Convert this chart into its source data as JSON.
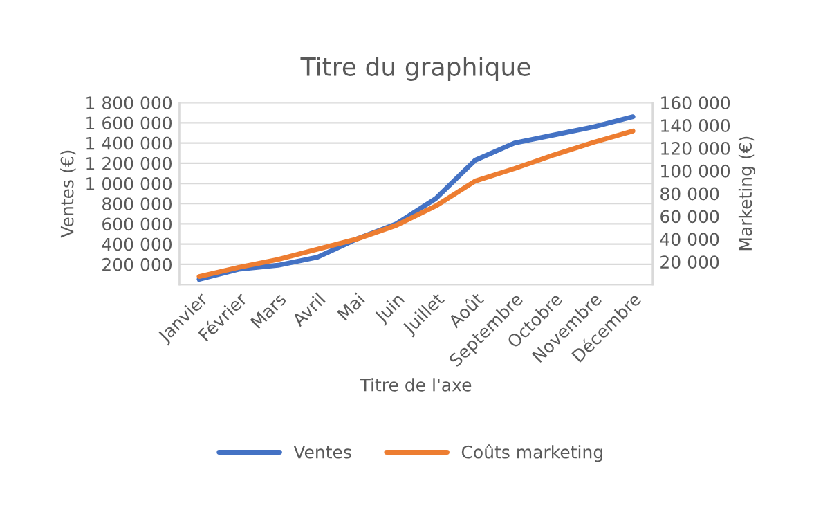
{
  "chart_data": {
    "type": "line",
    "title": "Titre du graphique",
    "xlabel": "Titre de l'axe",
    "ylabel": "Ventes (€)",
    "y2label": "Marketing (€)",
    "categories": [
      "Janvier",
      "Février",
      "Mars",
      "Avril",
      "Mai",
      "Juin",
      "Juillet",
      "Août",
      "Septembre",
      "Octobre",
      "Novembre",
      "Décembre"
    ],
    "series": [
      {
        "name": "Ventes",
        "color": "#4472c4",
        "values": [
          50000,
          150000,
          190000,
          270000,
          450000,
          600000,
          850000,
          1230000,
          1400000,
          1480000,
          1560000,
          1660000
        ]
      },
      {
        "name": "Coûts marketing",
        "color": "#ed7d31",
        "axis": "y2",
        "values": [
          7000,
          15000,
          22000,
          31000,
          40000,
          52000,
          69000,
          91000,
          102000,
          114000,
          125000,
          135000
        ]
      }
    ],
    "ylim": [
      0,
      1800000
    ],
    "yticks": [
      {
        "value": 0,
        "label": null
      },
      {
        "value": 200000,
        "label": "200 000"
      },
      {
        "value": 400000,
        "label": "400 000"
      },
      {
        "value": 600000,
        "label": "600 000"
      },
      {
        "value": 800000,
        "label": "800 000"
      },
      {
        "value": 1000000,
        "label": "1 000 000"
      },
      {
        "value": 1200000,
        "label": "1 200 000"
      },
      {
        "value": 1400000,
        "label": "1 400 000"
      },
      {
        "value": 1600000,
        "label": "1 600 000"
      },
      {
        "value": 1800000,
        "label": "1 800 000"
      }
    ],
    "y2lim": [
      0,
      160000
    ],
    "y2ticks": [
      {
        "value": 0,
        "label": null
      },
      {
        "value": 20000,
        "label": "20 000"
      },
      {
        "value": 40000,
        "label": "40 000"
      },
      {
        "value": 60000,
        "label": "60 000"
      },
      {
        "value": 80000,
        "label": "80 000"
      },
      {
        "value": 100000,
        "label": "100 000"
      },
      {
        "value": 120000,
        "label": "120 000"
      },
      {
        "value": 140000,
        "label": "140 000"
      },
      {
        "value": 160000,
        "label": "160 000"
      }
    ],
    "grid": "y",
    "legend": "bottom",
    "marker": "none",
    "line_style": "solid"
  }
}
